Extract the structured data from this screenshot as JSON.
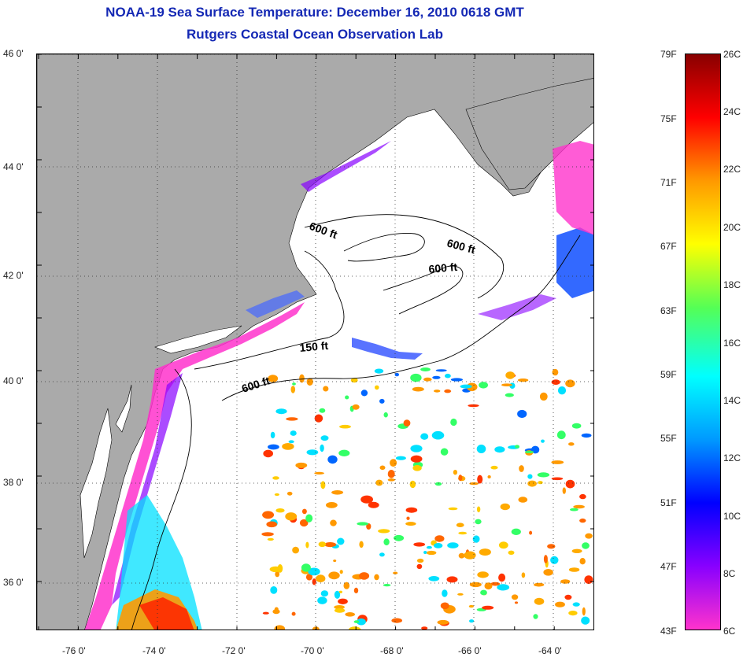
{
  "header": {
    "title": "NOAA-19 Sea Surface Temperature:  December 16, 2010 0618 GMT",
    "subtitle": "Rutgers Coastal Ocean Observation Lab"
  },
  "map": {
    "lat_ticks": [
      "46 0'",
      "44 0'",
      "42 0'",
      "40 0'",
      "38 0'",
      "36 0'"
    ],
    "lon_ticks": [
      "-76 0'",
      "-74 0'",
      "-72 0'",
      "-70 0'",
      "-68 0'",
      "-66 0'",
      "-64 0'"
    ],
    "contour_labels": [
      "600 ft",
      "600 ft",
      "600 ft",
      "150 ft",
      "600 ft"
    ],
    "land_color": "#aaaaaa",
    "grid": "dotted"
  },
  "colorbar": {
    "fahrenheit": [
      "79F",
      "75F",
      "71F",
      "67F",
      "63F",
      "59F",
      "55F",
      "51F",
      "47F",
      "43F"
    ],
    "celsius": [
      "26C",
      "24C",
      "22C",
      "20C",
      "18C",
      "16C",
      "14C",
      "12C",
      "10C",
      "8C",
      "6C"
    ],
    "colors": [
      "#ff33cc",
      "#8800ff",
      "#0000ff",
      "#0099ff",
      "#00ffff",
      "#55ff55",
      "#ffff00",
      "#ff9900",
      "#ff0000",
      "#880000"
    ]
  }
}
